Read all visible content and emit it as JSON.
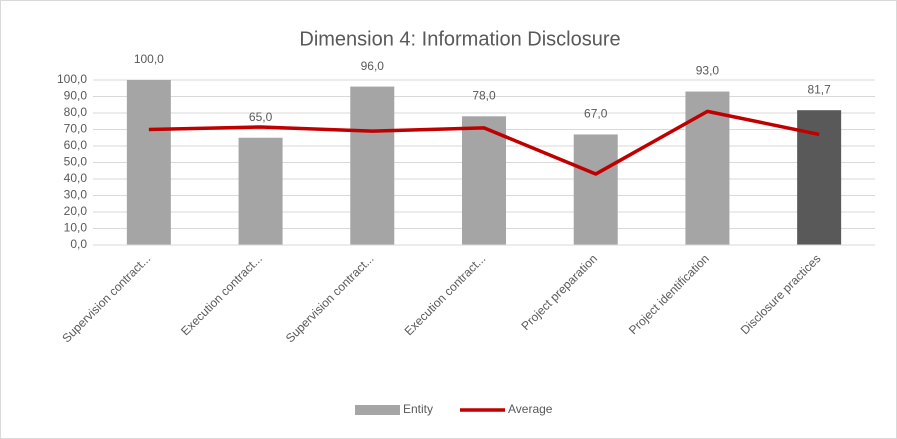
{
  "chart_data": {
    "type": "bar",
    "title": "Dimension 4: Information Disclosure",
    "categories": [
      "Supervision contract...",
      "Execution contract...",
      "Supervision contract...",
      "Execution contract...",
      "Project preparation",
      "Project identification",
      "Disclosure practices"
    ],
    "series": [
      {
        "name": "Entity",
        "type": "bar",
        "color": "#a5a5a5",
        "colors": [
          "#a5a5a5",
          "#a5a5a5",
          "#a5a5a5",
          "#a5a5a5",
          "#a5a5a5",
          "#a5a5a5",
          "#595959"
        ],
        "values": [
          100,
          65,
          96,
          78,
          67,
          93,
          81.7
        ],
        "value_labels": [
          "100,0",
          "65,0",
          "96,0",
          "78,0",
          "67,0",
          "93,0",
          "81,7"
        ]
      },
      {
        "name": "Average",
        "type": "line",
        "color": "#c00000",
        "values": [
          70,
          71.5,
          69,
          71,
          43,
          81,
          67
        ]
      }
    ],
    "ylim": [
      0,
      100
    ],
    "yticks": [
      {
        "value": 0,
        "label": "0,0"
      },
      {
        "value": 10,
        "label": "10,0"
      },
      {
        "value": 20,
        "label": "20,0"
      },
      {
        "value": 30,
        "label": "30,0"
      },
      {
        "value": 40,
        "label": "40,0"
      },
      {
        "value": 50,
        "label": "50,0"
      },
      {
        "value": 60,
        "label": "60,0"
      },
      {
        "value": 70,
        "label": "70,0"
      },
      {
        "value": 80,
        "label": "80,0"
      },
      {
        "value": 90,
        "label": "90,0"
      },
      {
        "value": 100,
        "label": "100,0"
      }
    ],
    "grid": true,
    "legend": "bottom"
  }
}
